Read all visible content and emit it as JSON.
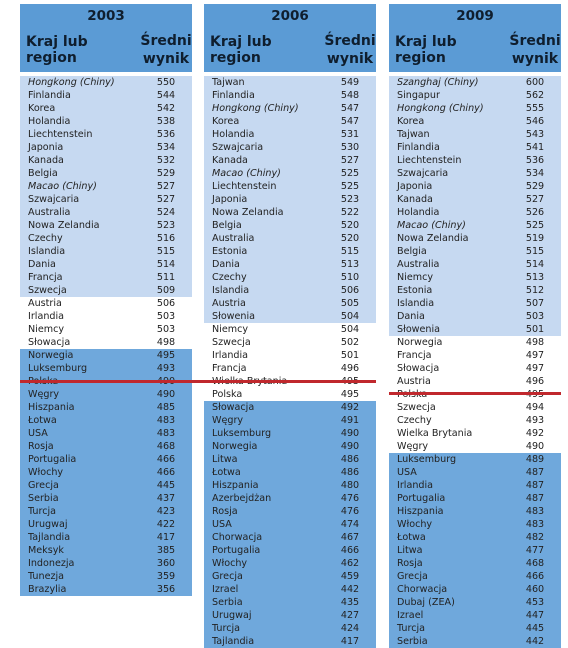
{
  "header_labels": {
    "country": "Kraj lub region",
    "score_line1": "Średni",
    "score_line2": "wynik"
  },
  "colors": {
    "header": "#5b9bd5",
    "above_average": "#c6d9f1",
    "not_different": "#ffffff",
    "below_average": "#6fa8dc",
    "divider": "#c0282d"
  },
  "tables": [
    {
      "year": "2003",
      "rows": [
        {
          "name": "Hongkong (Chiny)",
          "score": "550",
          "band": "above",
          "italic": true
        },
        {
          "name": "Finlandia",
          "score": "544",
          "band": "above"
        },
        {
          "name": "Korea",
          "score": "542",
          "band": "above"
        },
        {
          "name": "Holandia",
          "score": "538",
          "band": "above"
        },
        {
          "name": "Liechtenstein",
          "score": "536",
          "band": "above"
        },
        {
          "name": "Japonia",
          "score": "534",
          "band": "above"
        },
        {
          "name": "Kanada",
          "score": "532",
          "band": "above"
        },
        {
          "name": "Belgia",
          "score": "529",
          "band": "above"
        },
        {
          "name": "Macao (Chiny)",
          "score": "527",
          "band": "above",
          "italic": true
        },
        {
          "name": "Szwajcaria",
          "score": "527",
          "band": "above"
        },
        {
          "name": "Australia",
          "score": "524",
          "band": "above"
        },
        {
          "name": "Nowa Zelandia",
          "score": "523",
          "band": "above"
        },
        {
          "name": "Czechy",
          "score": "516",
          "band": "above"
        },
        {
          "name": "Islandia",
          "score": "515",
          "band": "above"
        },
        {
          "name": "Dania",
          "score": "514",
          "band": "above"
        },
        {
          "name": "Francja",
          "score": "511",
          "band": "above"
        },
        {
          "name": "Szwecja",
          "score": "509",
          "band": "above"
        },
        {
          "name": "Austria",
          "score": "506",
          "band": "equal"
        },
        {
          "name": "Irlandia",
          "score": "503",
          "band": "equal"
        },
        {
          "name": "Niemcy",
          "score": "503",
          "band": "equal"
        },
        {
          "name": "Słowacja",
          "score": "498",
          "band": "equal"
        },
        {
          "name": "Norwegia",
          "score": "495",
          "band": "below"
        },
        {
          "name": "Luksemburg",
          "score": "493",
          "band": "below"
        },
        {
          "name": "Polska",
          "score": "490",
          "band": "below"
        },
        {
          "name": "Węgry",
          "score": "490",
          "band": "below"
        },
        {
          "name": "Hiszpania",
          "score": "485",
          "band": "below"
        },
        {
          "name": "Łotwa",
          "score": "483",
          "band": "below"
        },
        {
          "name": "USA",
          "score": "483",
          "band": "below"
        },
        {
          "name": "Rosja",
          "score": "468",
          "band": "below"
        },
        {
          "name": "Portugalia",
          "score": "466",
          "band": "below"
        },
        {
          "name": "Włochy",
          "score": "466",
          "band": "below"
        },
        {
          "name": "Grecja",
          "score": "445",
          "band": "below"
        },
        {
          "name": "Serbia",
          "score": "437",
          "band": "below"
        },
        {
          "name": "Turcja",
          "score": "423",
          "band": "below"
        },
        {
          "name": "Urugwaj",
          "score": "422",
          "band": "below"
        },
        {
          "name": "Tajlandia",
          "score": "417",
          "band": "below"
        },
        {
          "name": "Meksyk",
          "score": "385",
          "band": "below"
        },
        {
          "name": "Indonezja",
          "score": "360",
          "band": "below"
        },
        {
          "name": "Tunezja",
          "score": "359",
          "band": "below"
        },
        {
          "name": "Brazylia",
          "score": "356",
          "band": "below"
        }
      ]
    },
    {
      "year": "2006",
      "rows": [
        {
          "name": "Tajwan",
          "score": "549",
          "band": "above"
        },
        {
          "name": "Finlandia",
          "score": "548",
          "band": "above"
        },
        {
          "name": "Hongkong (Chiny)",
          "score": "547",
          "band": "above",
          "italic": true
        },
        {
          "name": "Korea",
          "score": "547",
          "band": "above"
        },
        {
          "name": "Holandia",
          "score": "531",
          "band": "above"
        },
        {
          "name": "Szwajcaria",
          "score": "530",
          "band": "above"
        },
        {
          "name": "Kanada",
          "score": "527",
          "band": "above"
        },
        {
          "name": "Macao (Chiny)",
          "score": "525",
          "band": "above",
          "italic": true
        },
        {
          "name": "Liechtenstein",
          "score": "525",
          "band": "above"
        },
        {
          "name": "Japonia",
          "score": "523",
          "band": "above"
        },
        {
          "name": "Nowa Zelandia",
          "score": "522",
          "band": "above"
        },
        {
          "name": "Belgia",
          "score": "520",
          "band": "above"
        },
        {
          "name": "Australia",
          "score": "520",
          "band": "above"
        },
        {
          "name": "Estonia",
          "score": "515",
          "band": "above"
        },
        {
          "name": "Dania",
          "score": "513",
          "band": "above"
        },
        {
          "name": "Czechy",
          "score": "510",
          "band": "above"
        },
        {
          "name": "Islandia",
          "score": "506",
          "band": "above"
        },
        {
          "name": "Austria",
          "score": "505",
          "band": "above"
        },
        {
          "name": "Słowenia",
          "score": "504",
          "band": "above"
        },
        {
          "name": "Niemcy",
          "score": "504",
          "band": "equal"
        },
        {
          "name": "Szwecja",
          "score": "502",
          "band": "equal"
        },
        {
          "name": "Irlandia",
          "score": "501",
          "band": "equal"
        },
        {
          "name": "Francja",
          "score": "496",
          "band": "equal"
        },
        {
          "name": "Wielka Brytania",
          "score": "495",
          "band": "equal"
        },
        {
          "name": "Polska",
          "score": "495",
          "band": "equal"
        },
        {
          "name": "Słowacja",
          "score": "492",
          "band": "below"
        },
        {
          "name": "Węgry",
          "score": "491",
          "band": "below"
        },
        {
          "name": "Luksemburg",
          "score": "490",
          "band": "below"
        },
        {
          "name": "Norwegia",
          "score": "490",
          "band": "below"
        },
        {
          "name": "Litwa",
          "score": "486",
          "band": "below"
        },
        {
          "name": "Łotwa",
          "score": "486",
          "band": "below"
        },
        {
          "name": "Hiszpania",
          "score": "480",
          "band": "below"
        },
        {
          "name": "Azerbejdżan",
          "score": "476",
          "band": "below"
        },
        {
          "name": "Rosja",
          "score": "476",
          "band": "below"
        },
        {
          "name": "USA",
          "score": "474",
          "band": "below"
        },
        {
          "name": "Chorwacja",
          "score": "467",
          "band": "below"
        },
        {
          "name": "Portugalia",
          "score": "466",
          "band": "below"
        },
        {
          "name": "Włochy",
          "score": "462",
          "band": "below"
        },
        {
          "name": "Grecja",
          "score": "459",
          "band": "below"
        },
        {
          "name": "Izrael",
          "score": "442",
          "band": "below"
        },
        {
          "name": "Serbia",
          "score": "435",
          "band": "below"
        },
        {
          "name": "Urugwaj",
          "score": "427",
          "band": "below"
        },
        {
          "name": "Turcja",
          "score": "424",
          "band": "below"
        },
        {
          "name": "Tajlandia",
          "score": "417",
          "band": "below"
        }
      ]
    },
    {
      "year": "2009",
      "rows": [
        {
          "name": "Szanghaj (Chiny)",
          "score": "600",
          "band": "above",
          "italic": true
        },
        {
          "name": "Singapur",
          "score": "562",
          "band": "above"
        },
        {
          "name": "Hongkong (Chiny)",
          "score": "555",
          "band": "above",
          "italic": true
        },
        {
          "name": "Korea",
          "score": "546",
          "band": "above"
        },
        {
          "name": "Tajwan",
          "score": "543",
          "band": "above"
        },
        {
          "name": "Finlandia",
          "score": "541",
          "band": "above"
        },
        {
          "name": "Liechtenstein",
          "score": "536",
          "band": "above"
        },
        {
          "name": "Szwajcaria",
          "score": "534",
          "band": "above"
        },
        {
          "name": "Japonia",
          "score": "529",
          "band": "above"
        },
        {
          "name": "Kanada",
          "score": "527",
          "band": "above"
        },
        {
          "name": "Holandia",
          "score": "526",
          "band": "above"
        },
        {
          "name": "Macao (Chiny)",
          "score": "525",
          "band": "above",
          "italic": true
        },
        {
          "name": "Nowa Zelandia",
          "score": "519",
          "band": "above"
        },
        {
          "name": "Belgia",
          "score": "515",
          "band": "above"
        },
        {
          "name": "Australia",
          "score": "514",
          "band": "above"
        },
        {
          "name": "Niemcy",
          "score": "513",
          "band": "above"
        },
        {
          "name": "Estonia",
          "score": "512",
          "band": "above"
        },
        {
          "name": "Islandia",
          "score": "507",
          "band": "above"
        },
        {
          "name": "Dania",
          "score": "503",
          "band": "above"
        },
        {
          "name": "Słowenia",
          "score": "501",
          "band": "above"
        },
        {
          "name": "Norwegia",
          "score": "498",
          "band": "equal"
        },
        {
          "name": "Francja",
          "score": "497",
          "band": "equal"
        },
        {
          "name": "Słowacja",
          "score": "497",
          "band": "equal"
        },
        {
          "name": "Austria",
          "score": "496",
          "band": "equal"
        },
        {
          "name": "Polska",
          "score": "495",
          "band": "equal"
        },
        {
          "name": "Szwecja",
          "score": "494",
          "band": "equal"
        },
        {
          "name": "Czechy",
          "score": "493",
          "band": "equal"
        },
        {
          "name": "Wielka Brytania",
          "score": "492",
          "band": "equal"
        },
        {
          "name": "Węgry",
          "score": "490",
          "band": "equal"
        },
        {
          "name": "Luksemburg",
          "score": "489",
          "band": "below"
        },
        {
          "name": "USA",
          "score": "487",
          "band": "below"
        },
        {
          "name": "Irlandia",
          "score": "487",
          "band": "below"
        },
        {
          "name": "Portugalia",
          "score": "487",
          "band": "below"
        },
        {
          "name": "Hiszpania",
          "score": "483",
          "band": "below"
        },
        {
          "name": "Włochy",
          "score": "483",
          "band": "below"
        },
        {
          "name": "Łotwa",
          "score": "482",
          "band": "below"
        },
        {
          "name": "Litwa",
          "score": "477",
          "band": "below"
        },
        {
          "name": "Rosja",
          "score": "468",
          "band": "below"
        },
        {
          "name": "Grecja",
          "score": "466",
          "band": "below"
        },
        {
          "name": "Chorwacja",
          "score": "460",
          "band": "below"
        },
        {
          "name": "Dubaj (ZEA)",
          "score": "453",
          "band": "below"
        },
        {
          "name": "Izrael",
          "score": "447",
          "band": "below"
        },
        {
          "name": "Turcja",
          "score": "445",
          "band": "below"
        },
        {
          "name": "Serbia",
          "score": "442",
          "band": "below"
        }
      ]
    }
  ]
}
